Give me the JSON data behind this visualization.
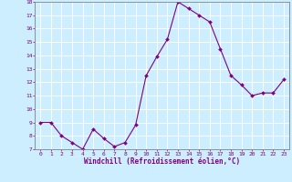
{
  "x": [
    0,
    1,
    2,
    3,
    4,
    5,
    6,
    7,
    8,
    9,
    10,
    11,
    12,
    13,
    14,
    15,
    16,
    17,
    18,
    19,
    20,
    21,
    22,
    23
  ],
  "y": [
    9.0,
    9.0,
    8.0,
    7.5,
    7.0,
    8.5,
    7.8,
    7.2,
    7.5,
    8.8,
    12.5,
    13.9,
    15.2,
    18.0,
    17.5,
    17.0,
    16.5,
    14.5,
    12.5,
    11.8,
    11.0,
    11.2,
    11.2,
    12.2
  ],
  "xlabel": "Windchill (Refroidissement éolien,°C)",
  "ylim": [
    7,
    18
  ],
  "xlim": [
    -0.5,
    23.5
  ],
  "yticks": [
    7,
    8,
    9,
    10,
    11,
    12,
    13,
    14,
    15,
    16,
    17,
    18
  ],
  "xticks": [
    0,
    1,
    2,
    3,
    4,
    5,
    6,
    7,
    8,
    9,
    10,
    11,
    12,
    13,
    14,
    15,
    16,
    17,
    18,
    19,
    20,
    21,
    22,
    23
  ],
  "line_color": "#800080",
  "marker_color": "#800080",
  "bg_color": "#cceeff",
  "grid_color": "#aadddd",
  "axis_label_color": "#800080",
  "tick_color": "#800080",
  "spine_color": "#808080"
}
